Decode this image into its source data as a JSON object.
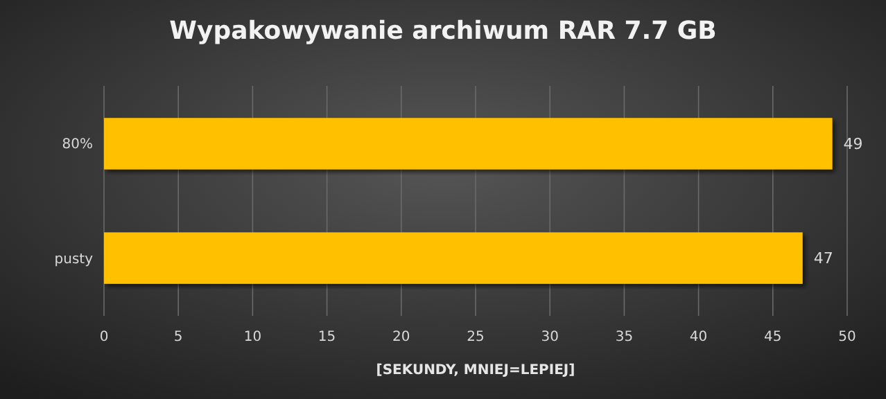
{
  "chart_data": {
    "type": "bar",
    "orientation": "horizontal",
    "title": "Wypakowywanie  archiwum  RAR 7.7 GB",
    "xlabel": "[SEKUNDY,  MNIEJ=LEPIEJ]",
    "categories": [
      "80%",
      "pusty"
    ],
    "series": [
      {
        "color": "#ffc000",
        "values": [
          49,
          47
        ]
      }
    ],
    "xlim": [
      0,
      50
    ],
    "xticks": [
      0,
      5,
      10,
      15,
      20,
      25,
      30,
      35,
      40,
      45,
      50
    ],
    "grid": "x",
    "data_labels": true
  }
}
